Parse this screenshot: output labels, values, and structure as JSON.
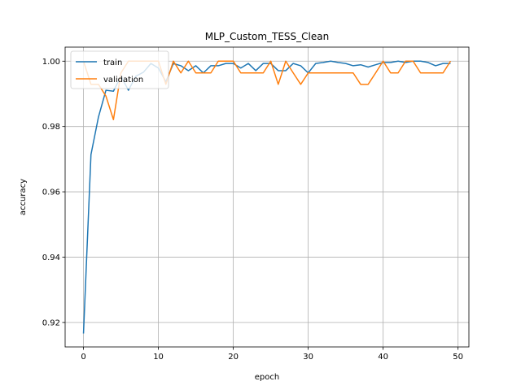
{
  "chart_data": {
    "type": "line",
    "title": "MLP_Custom_TESS_Clean",
    "xlabel": "epoch",
    "ylabel": "accuracy",
    "xlim": [
      -2.45,
      51.45
    ],
    "ylim": [
      0.9125,
      1.0043
    ],
    "xticks": [
      0,
      10,
      20,
      30,
      40,
      50
    ],
    "yticks": [
      0.92,
      0.94,
      0.96,
      0.98,
      1.0
    ],
    "ytick_labels": [
      "0.92",
      "0.94",
      "0.96",
      "0.98",
      "1.00"
    ],
    "grid": true,
    "legend_position": "upper-left",
    "x": [
      0,
      1,
      2,
      3,
      4,
      5,
      6,
      7,
      8,
      9,
      10,
      11,
      12,
      13,
      14,
      15,
      16,
      17,
      18,
      19,
      20,
      21,
      22,
      23,
      24,
      25,
      26,
      27,
      28,
      29,
      30,
      31,
      32,
      33,
      34,
      35,
      36,
      37,
      38,
      39,
      40,
      41,
      42,
      43,
      44,
      45,
      46,
      47,
      48,
      49
    ],
    "series": [
      {
        "name": "train",
        "color": "#1f77b4",
        "values": [
          0.9166,
          0.9714,
          0.9829,
          0.9911,
          0.9908,
          0.9954,
          0.9911,
          0.9954,
          0.9966,
          0.9993,
          0.9979,
          0.9937,
          0.9993,
          0.9986,
          0.9971,
          0.9986,
          0.9964,
          0.9986,
          0.9986,
          0.9993,
          0.9993,
          0.9979,
          0.9993,
          0.9971,
          0.9993,
          0.9993,
          0.9971,
          0.9971,
          0.9993,
          0.9986,
          0.9964,
          0.9993,
          0.9996,
          1.0,
          0.9996,
          0.9993,
          0.9986,
          0.9989,
          0.9982,
          0.9989,
          0.9996,
          0.9996,
          1.0,
          0.9996,
          1.0,
          1.0,
          0.9996,
          0.9986,
          0.9993,
          0.9993
        ]
      },
      {
        "name": "validation",
        "color": "#ff7f0e",
        "values": [
          1.0,
          0.9929,
          0.9929,
          0.9893,
          0.9821,
          0.9964,
          1.0,
          1.0,
          1.0,
          1.0,
          1.0,
          0.9929,
          1.0,
          0.9964,
          1.0,
          0.9964,
          0.9964,
          0.9964,
          1.0,
          1.0,
          1.0,
          0.9964,
          0.9964,
          0.9964,
          0.9964,
          1.0,
          0.9929,
          1.0,
          0.9964,
          0.9929,
          0.9964,
          0.9964,
          0.9964,
          0.9964,
          0.9964,
          0.9964,
          0.9964,
          0.9929,
          0.9929,
          0.9964,
          1.0,
          0.9964,
          0.9964,
          1.0,
          1.0,
          0.9964,
          0.9964,
          0.9964,
          0.9964,
          1.0
        ]
      }
    ]
  }
}
